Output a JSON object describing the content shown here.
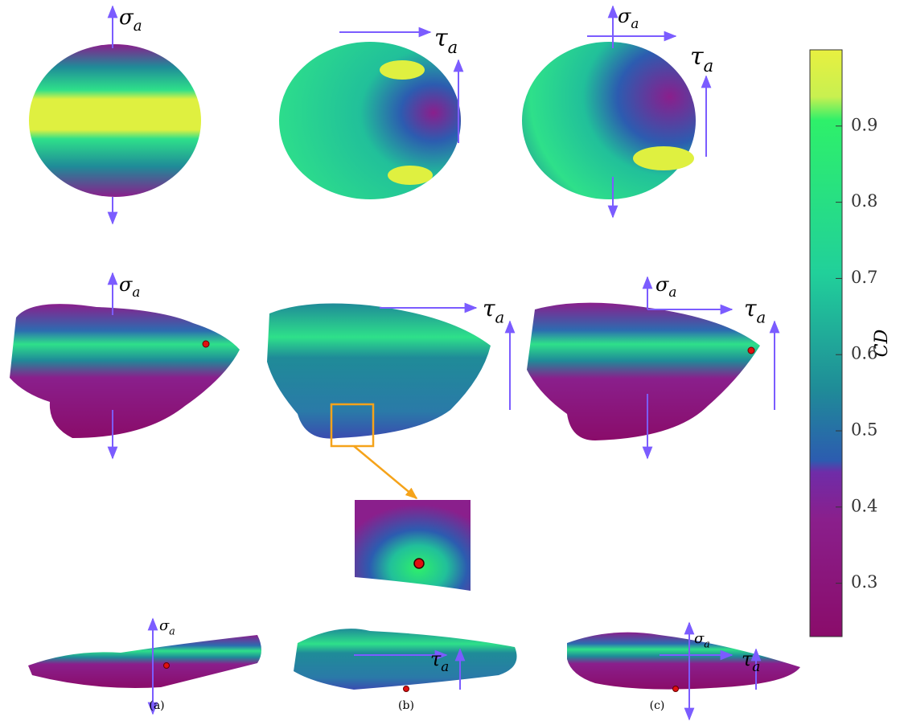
{
  "sigma": {
    "symbol": "σ",
    "sub": "a"
  },
  "tau": {
    "symbol": "τ",
    "sub": "a"
  },
  "panels": [
    {
      "label": "(a)"
    },
    {
      "label": "(b)"
    },
    {
      "label": "(c)"
    }
  ],
  "colorbar": {
    "label": "CD",
    "lim": [
      0.23,
      1.0
    ],
    "ticks": [
      0.3,
      0.4,
      0.5,
      0.6,
      0.7,
      0.8,
      0.9
    ]
  }
}
